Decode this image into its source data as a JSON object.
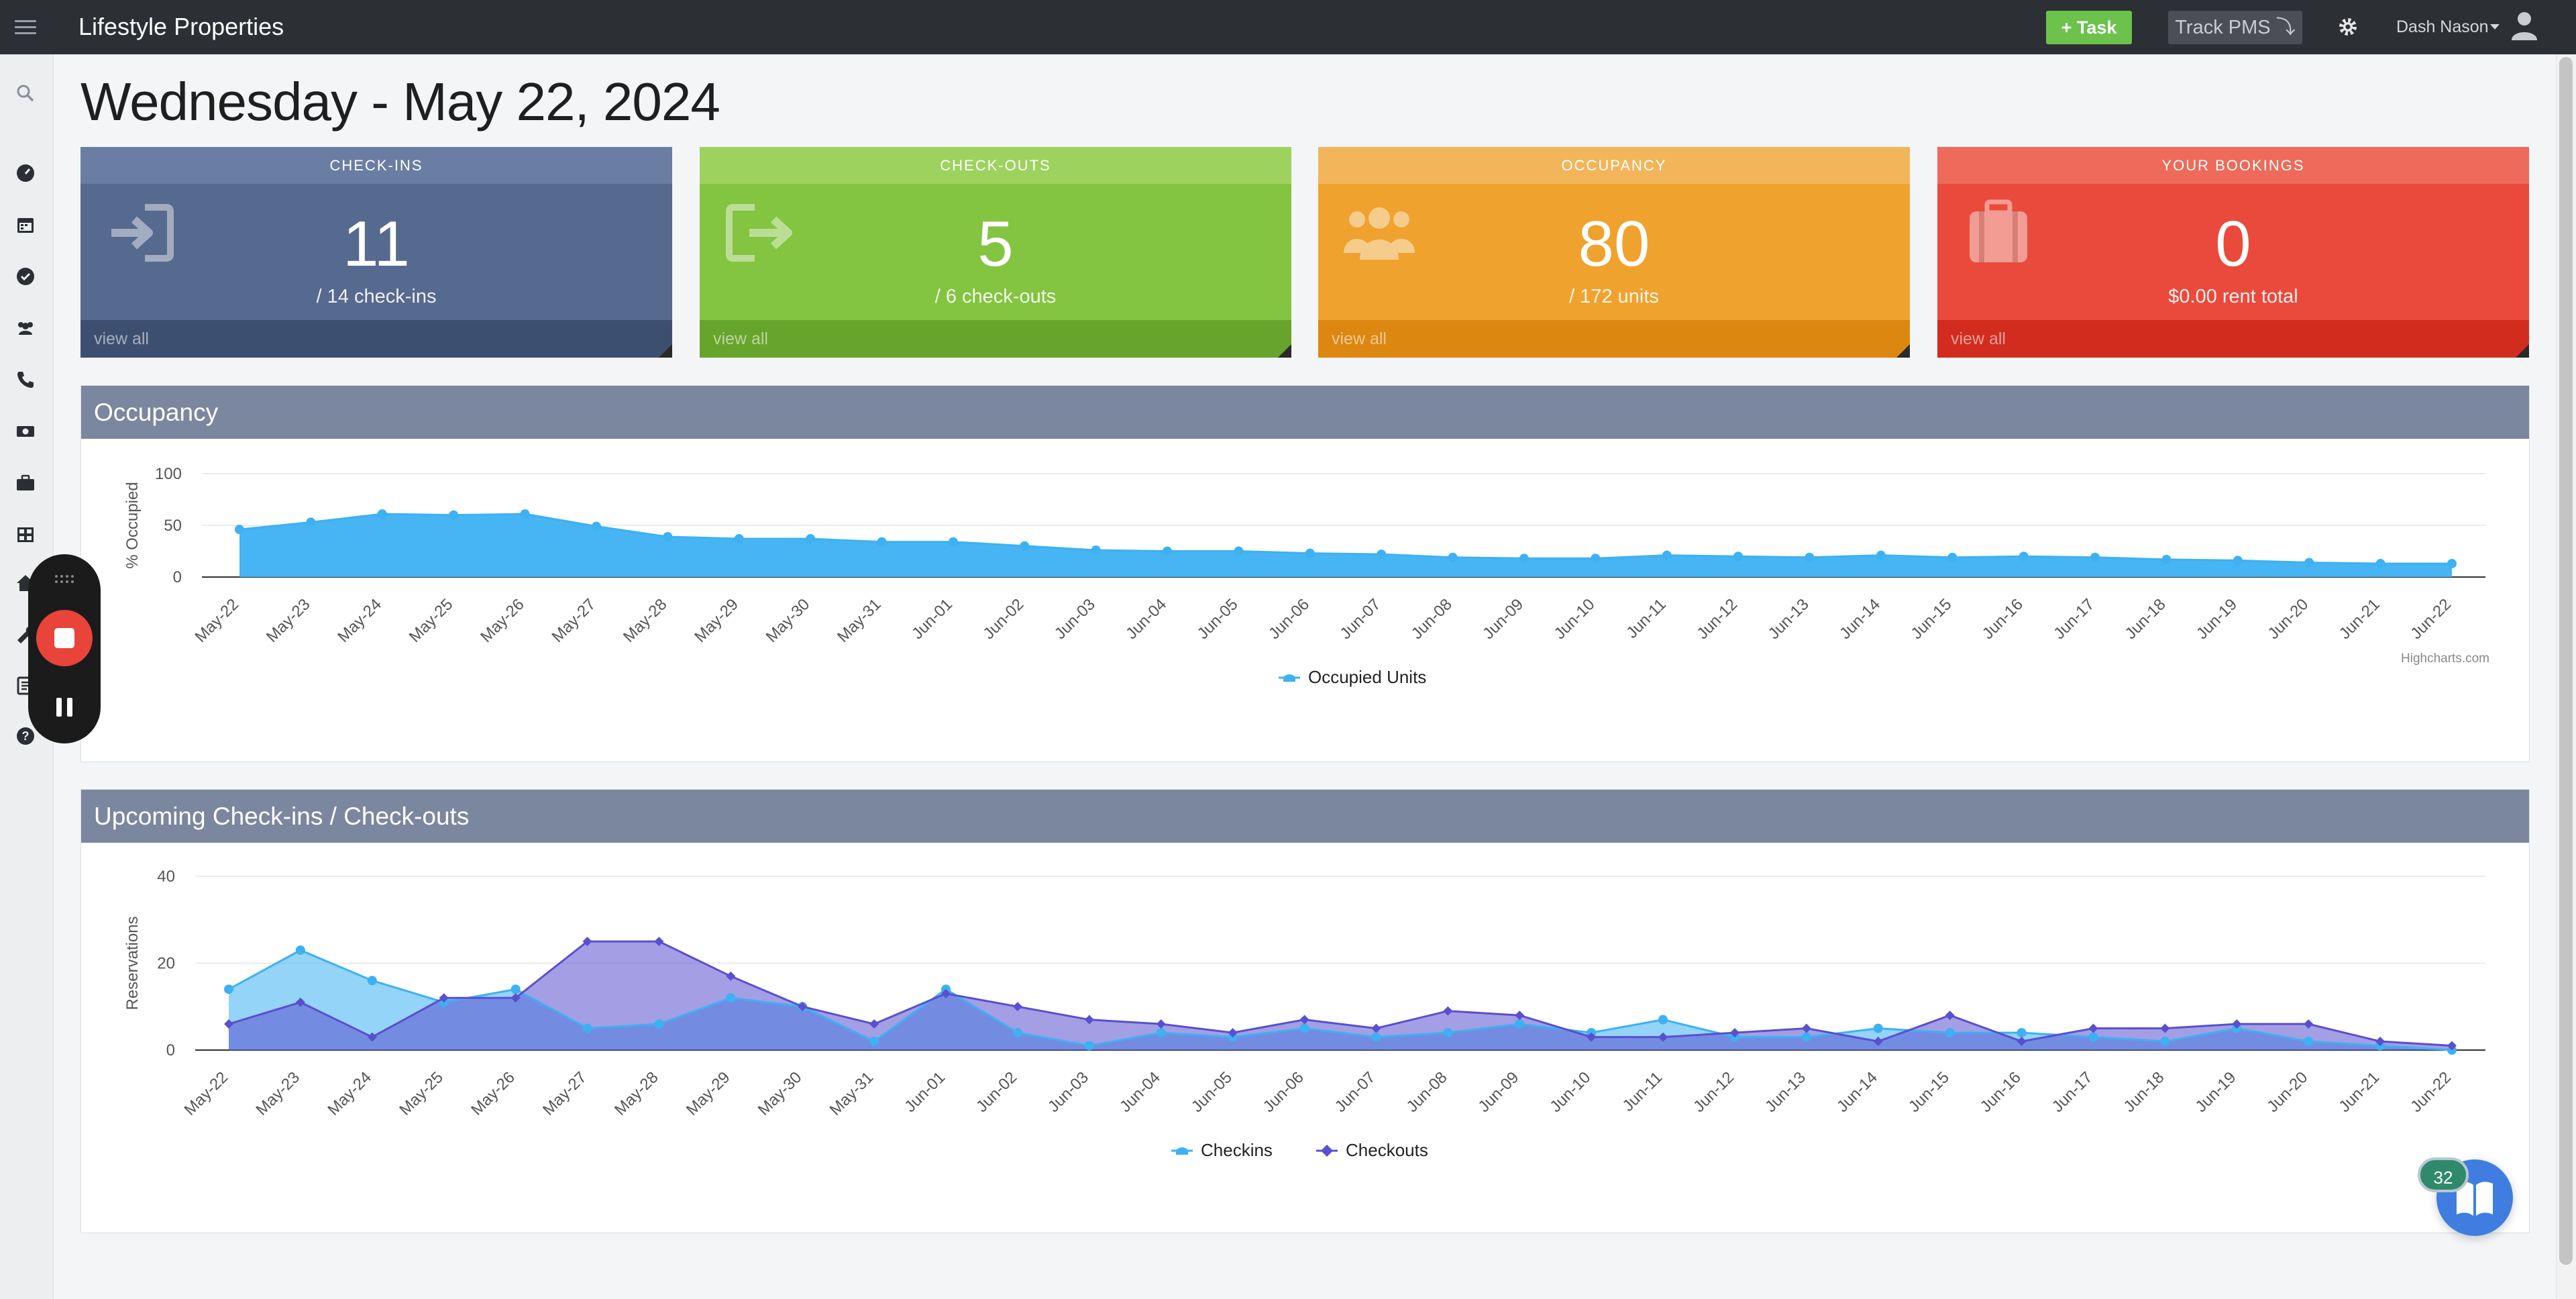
{
  "header": {
    "app_title": "Lifestyle Properties",
    "task_button": "+ Task",
    "track_button": "Track PMS ⤵",
    "user_name": "Dash Nason"
  },
  "sidebar": {
    "icons": [
      "search-icon",
      "dashboard-icon",
      "calendar-icon",
      "check-circle-icon",
      "users-icon",
      "phone-icon",
      "money-icon",
      "briefcase-icon",
      "grid-icon",
      "home-icon",
      "wrench-icon",
      "report-icon",
      "help-icon"
    ]
  },
  "page": {
    "title": "Wednesday - May 22, 2024"
  },
  "cards": [
    {
      "key": "checkins",
      "title": "CHECK-INS",
      "value": "11",
      "sub": "/ 14 check-ins",
      "footer": "view all",
      "color": "#56698e",
      "head_color": "#6a7ea3",
      "foot_color": "#3d4f70",
      "icon": "sign-in-icon"
    },
    {
      "key": "checkouts",
      "title": "CHECK-OUTS",
      "value": "5",
      "sub": "/ 6 check-outs",
      "footer": "view all",
      "color": "#83c441",
      "head_color": "#9dd25f",
      "foot_color": "#67a42b",
      "icon": "sign-out-icon"
    },
    {
      "key": "occupancy",
      "title": "OCCUPANCY",
      "value": "80",
      "sub": "/ 172 units",
      "footer": "view all",
      "color": "#f0a22e",
      "head_color": "#f3b55a",
      "foot_color": "#dc8710",
      "icon": "users-icon"
    },
    {
      "key": "bookings",
      "title": "YOUR BOOKINGS",
      "value": "0",
      "sub": "$0.00 rent total",
      "footer": "view all",
      "color": "#ea4a3c",
      "head_color": "#ee6a5b",
      "foot_color": "#d22c1e",
      "icon": "suitcase-icon"
    }
  ],
  "occupancy_panel": {
    "title": "Occupancy"
  },
  "upcoming_panel": {
    "title": "Upcoming Check-ins / Check-outs"
  },
  "credit": "Highcharts.com",
  "help_badge": "32",
  "chart_data": [
    {
      "type": "area",
      "title": "Occupancy",
      "ylabel": "% Occupied",
      "ylim": [
        0,
        100
      ],
      "yticks": [
        0,
        50,
        100
      ],
      "grid": true,
      "legend": "bottom-center",
      "categories": [
        "May-22",
        "May-23",
        "May-24",
        "May-25",
        "May-26",
        "May-27",
        "May-28",
        "May-29",
        "May-30",
        "May-31",
        "Jun-01",
        "Jun-02",
        "Jun-03",
        "Jun-04",
        "Jun-05",
        "Jun-06",
        "Jun-07",
        "Jun-08",
        "Jun-09",
        "Jun-10",
        "Jun-11",
        "Jun-12",
        "Jun-13",
        "Jun-14",
        "Jun-15",
        "Jun-16",
        "Jun-17",
        "Jun-18",
        "Jun-19",
        "Jun-20",
        "Jun-21",
        "Jun-22"
      ],
      "series": [
        {
          "name": "Occupied Units",
          "color": "#3db1f2",
          "values": [
            46,
            53,
            61,
            60,
            61,
            49,
            39,
            37,
            37,
            34,
            34,
            30,
            26,
            25,
            25,
            23,
            22,
            19,
            18,
            18,
            21,
            20,
            19,
            21,
            19,
            20,
            19,
            17,
            16,
            14,
            13,
            13
          ]
        }
      ]
    },
    {
      "type": "area",
      "title": "Upcoming Check-ins / Check-outs",
      "ylabel": "Reservations",
      "ylim": [
        0,
        40
      ],
      "yticks": [
        0,
        20,
        40
      ],
      "grid": true,
      "legend": "bottom-center",
      "categories": [
        "May-22",
        "May-23",
        "May-24",
        "May-25",
        "May-26",
        "May-27",
        "May-28",
        "May-29",
        "May-30",
        "May-31",
        "Jun-01",
        "Jun-02",
        "Jun-03",
        "Jun-04",
        "Jun-05",
        "Jun-06",
        "Jun-07",
        "Jun-08",
        "Jun-09",
        "Jun-10",
        "Jun-11",
        "Jun-12",
        "Jun-13",
        "Jun-14",
        "Jun-15",
        "Jun-16",
        "Jun-17",
        "Jun-18",
        "Jun-19",
        "Jun-20",
        "Jun-21",
        "Jun-22"
      ],
      "series": [
        {
          "name": "Checkins",
          "color": "#3db1f2",
          "values": [
            14,
            23,
            16,
            11,
            14,
            5,
            6,
            12,
            10,
            2,
            14,
            4,
            1,
            4,
            3,
            5,
            3,
            4,
            6,
            4,
            7,
            3,
            3,
            5,
            4,
            4,
            3,
            2,
            5,
            2,
            1,
            0
          ]
        },
        {
          "name": "Checkouts",
          "color": "#5a4fcf",
          "values": [
            6,
            11,
            3,
            12,
            12,
            25,
            25,
            17,
            10,
            6,
            13,
            10,
            7,
            6,
            4,
            7,
            5,
            9,
            8,
            3,
            3,
            4,
            5,
            2,
            8,
            2,
            5,
            5,
            6,
            6,
            2,
            1
          ]
        }
      ]
    }
  ]
}
